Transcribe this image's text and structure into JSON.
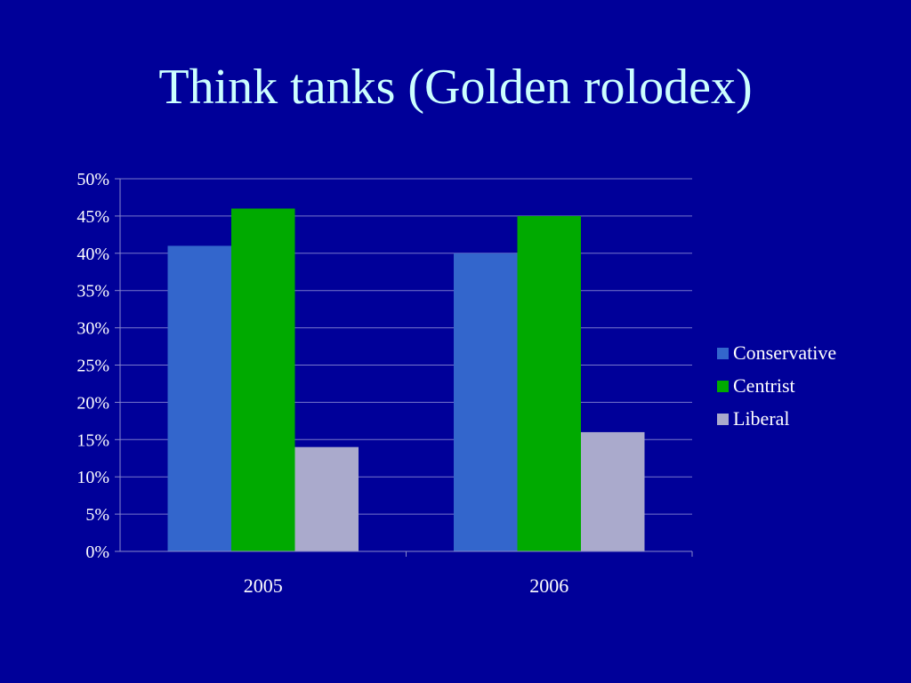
{
  "slide": {
    "title": "Think tanks (Golden rolodex)"
  },
  "chart_data": {
    "type": "bar",
    "title": "",
    "xlabel": "",
    "ylabel": "",
    "categories": [
      "2005",
      "2006"
    ],
    "series": [
      {
        "name": "Conservative",
        "values": [
          41,
          40
        ],
        "color": "#3366cc"
      },
      {
        "name": "Centrist",
        "values": [
          46,
          45
        ],
        "color": "#00aa00"
      },
      {
        "name": "Liberal",
        "values": [
          14,
          16
        ],
        "color": "#aaaacc"
      }
    ],
    "ylim": [
      0,
      50
    ],
    "y_ticks": [
      "0%",
      "5%",
      "10%",
      "15%",
      "20%",
      "25%",
      "30%",
      "35%",
      "40%",
      "45%",
      "50%"
    ],
    "grid": true,
    "legend_position": "right",
    "colors": {
      "background": "#000099",
      "title": "#ccffff",
      "text": "#ffffff",
      "gridline": "#7777cc",
      "axis": "#8888cc"
    }
  }
}
